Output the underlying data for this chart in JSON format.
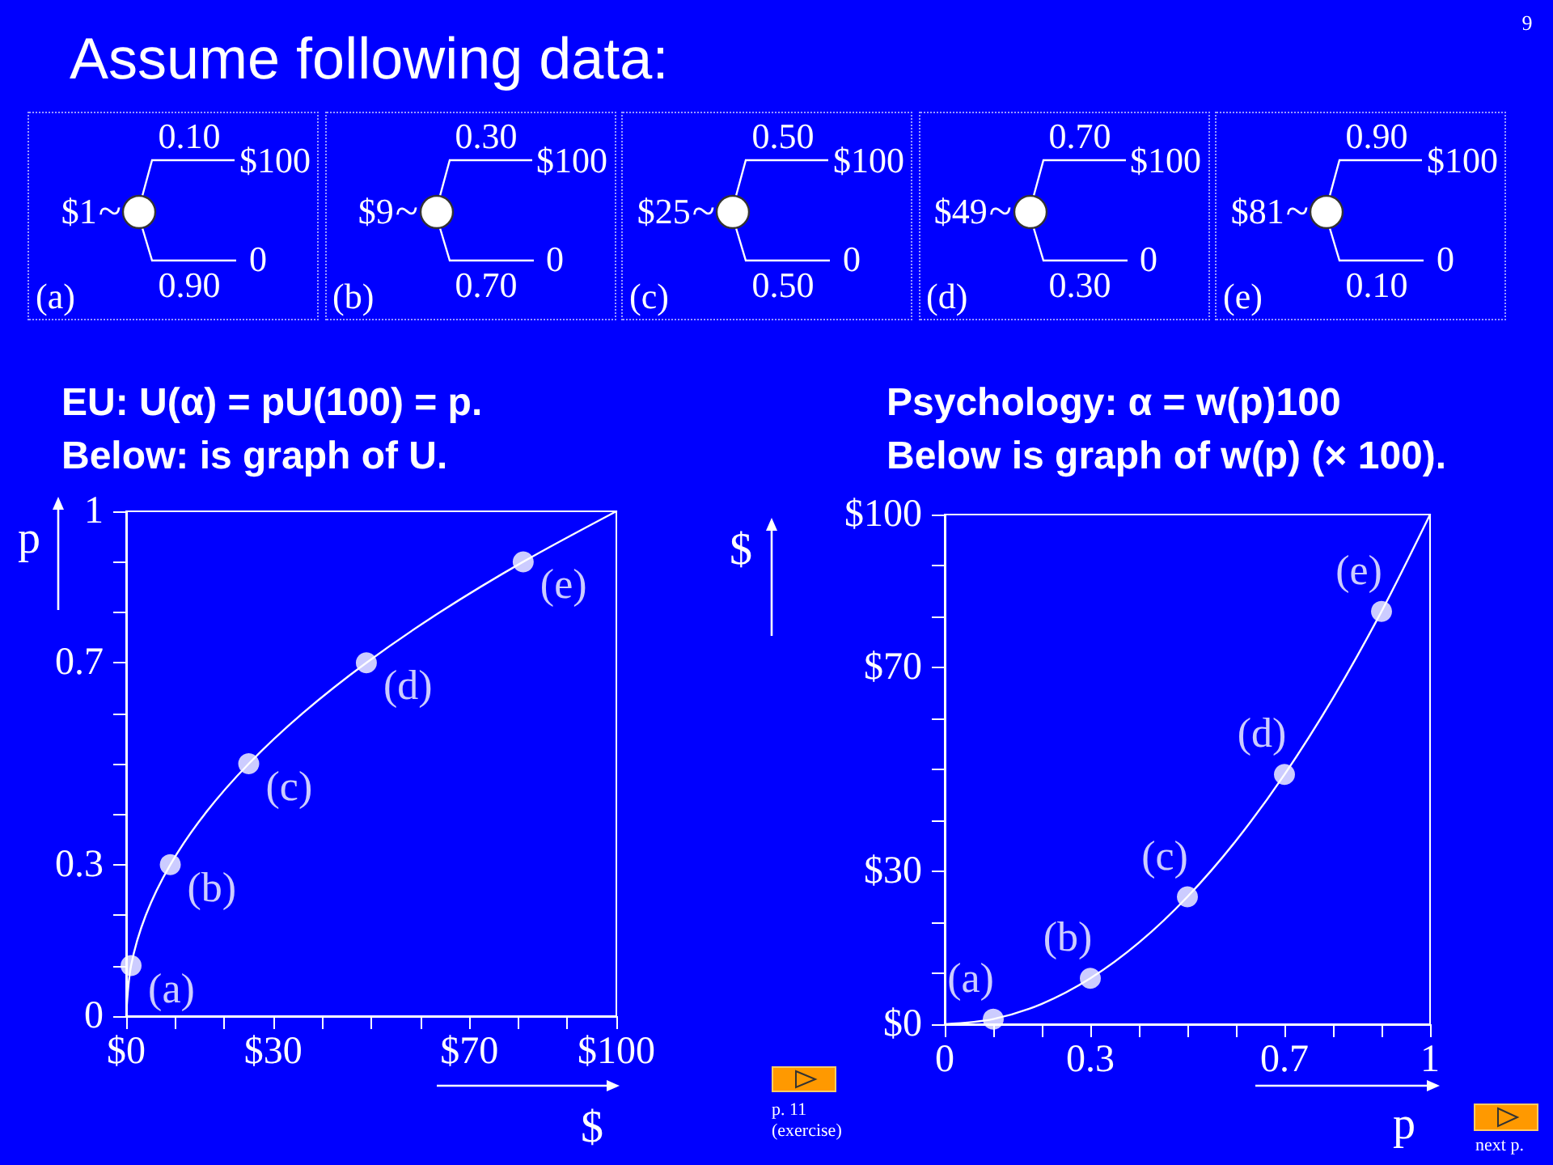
{
  "chart_data": [
    {
      "type": "other",
      "title": "Assume following data:",
      "annotations": [
        "9"
      ]
    },
    {
      "type": "other",
      "annotations": [
        "(a)",
        "$1",
        "~",
        "0.10",
        "$100",
        "0",
        "0.90"
      ]
    },
    {
      "type": "other",
      "annotations": [
        "(b)",
        "$9",
        "~",
        "0.30",
        "$100",
        "0",
        "0.70"
      ]
    },
    {
      "type": "other",
      "annotations": [
        "(c)",
        "$25",
        "~",
        "0.50",
        "$100",
        "0",
        "0.50"
      ]
    },
    {
      "type": "other",
      "annotations": [
        "(d)",
        "$49",
        "~",
        "0.70",
        "$100",
        "0",
        "0.30"
      ]
    },
    {
      "type": "other",
      "annotations": [
        "(e)",
        "$81",
        "~",
        "0.90",
        "$100",
        "0",
        "0.10"
      ]
    },
    {
      "type": "scatter",
      "title": "EU: U(α) = pU(100) = p.",
      "subtitle": "Below: is graph of U.",
      "xlabel": "$",
      "ylabel": "p",
      "xlim": [
        0,
        100
      ],
      "ylim": [
        0,
        1
      ],
      "xticks": [
        {
          "value": 0,
          "label": "$0"
        },
        {
          "value": 10,
          "label": null
        },
        {
          "value": 20,
          "label": null
        },
        {
          "value": 30,
          "label": "$30"
        },
        {
          "value": 40,
          "label": null
        },
        {
          "value": 50,
          "label": null
        },
        {
          "value": 60,
          "label": null
        },
        {
          "value": 70,
          "label": "$70"
        },
        {
          "value": 80,
          "label": null
        },
        {
          "value": 90,
          "label": null
        },
        {
          "value": 100,
          "label": "$100"
        }
      ],
      "yticks": [
        0,
        {
          "value": 0.1,
          "label": null
        },
        {
          "value": 0.2,
          "label": null
        },
        0.3,
        {
          "value": 0.4,
          "label": null
        },
        {
          "value": 0.5,
          "label": null
        },
        {
          "value": 0.6,
          "label": null
        },
        0.7,
        {
          "value": 0.8,
          "label": null
        },
        {
          "value": 0.9,
          "label": null
        },
        1
      ],
      "marker": "circle",
      "series": [
        {
          "type": "line",
          "marker": "none",
          "color": "#ffffff",
          "x": [
            0,
            1,
            4,
            9,
            16,
            25,
            36,
            49,
            64,
            81,
            100
          ],
          "values": [
            0,
            0.1,
            0.2,
            0.3,
            0.4,
            0.5,
            0.6,
            0.7,
            0.8,
            0.9,
            1
          ]
        },
        {
          "color": "#ffffff",
          "x": [
            1,
            9,
            25,
            49,
            81
          ],
          "values": [
            0.1,
            0.3,
            0.5,
            0.7,
            0.9
          ],
          "value_labels": [
            "(a)",
            "(b)",
            "(c)",
            "(d)",
            "(e)"
          ]
        }
      ]
    },
    {
      "type": "scatter",
      "title": "Psychology: α = w(p)100",
      "subtitle": "Below is graph of w(p) (× 100).",
      "xlabel": "p",
      "ylabel": "$",
      "xlim": [
        0,
        1
      ],
      "ylim": [
        0,
        100
      ],
      "xticks": [
        0,
        {
          "value": 0.1,
          "label": null
        },
        {
          "value": 0.2,
          "label": null
        },
        0.3,
        {
          "value": 0.4,
          "label": null
        },
        {
          "value": 0.5,
          "label": null
        },
        {
          "value": 0.6,
          "label": null
        },
        0.7,
        {
          "value": 0.8,
          "label": null
        },
        {
          "value": 0.9,
          "label": null
        },
        1
      ],
      "yticks": [
        {
          "value": 0,
          "label": "$0"
        },
        {
          "value": 10,
          "label": null
        },
        {
          "value": 20,
          "label": null
        },
        {
          "value": 30,
          "label": "$30"
        },
        {
          "value": 40,
          "label": null
        },
        {
          "value": 50,
          "label": null
        },
        {
          "value": 60,
          "label": null
        },
        {
          "value": 70,
          "label": "$70"
        },
        {
          "value": 80,
          "label": null
        },
        {
          "value": 90,
          "label": null
        },
        {
          "value": 100,
          "label": "$100"
        }
      ],
      "marker": "circle",
      "series": [
        {
          "type": "line",
          "marker": "none",
          "color": "#ffffff",
          "x": [
            0,
            0.1,
            0.2,
            0.3,
            0.4,
            0.5,
            0.6,
            0.7,
            0.8,
            0.9,
            1
          ],
          "values": [
            0,
            1,
            4,
            9,
            16,
            25,
            36,
            49,
            64,
            81,
            100
          ]
        },
        {
          "color": "#ffffff",
          "x": [
            0.1,
            0.3,
            0.5,
            0.7,
            0.9
          ],
          "values": [
            1,
            9,
            25,
            49,
            81
          ],
          "value_labels": [
            "(a)",
            "(b)",
            "(c)",
            "(d)",
            "(e)"
          ]
        }
      ],
      "annotations": [
        "p. 11 (exercise)",
        "next p."
      ]
    }
  ]
}
